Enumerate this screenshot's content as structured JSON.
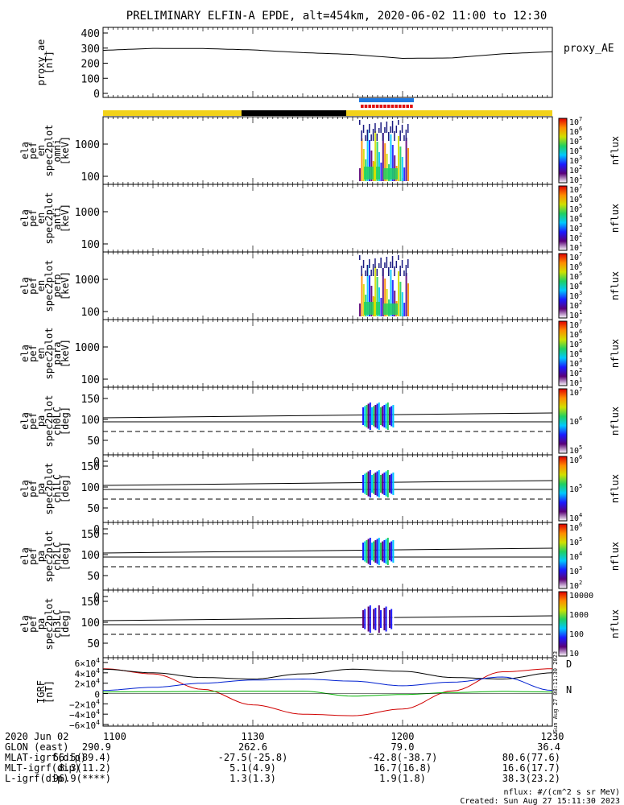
{
  "title": "PRELIMINARY ELFIN-A EPDE, alt=454km, 2020-06-02 11:00 to 12:30",
  "colors": {
    "status_yellow": "#f2d21a",
    "status_black": "#000000",
    "status_blue": "#1f78e0",
    "status_red": "#e01010"
  },
  "panels": [
    {
      "id": "proxy_ae",
      "label_lines": [
        "proxy_ae",
        "[nT]"
      ],
      "side_label": "proxy_AE",
      "yticks": [
        "400",
        "300",
        "200",
        "100",
        "0"
      ]
    },
    {
      "id": "omni",
      "label_lines": [
        "ela",
        "pef",
        "en",
        "spec2plot",
        "omni",
        "[keV]"
      ],
      "yticks": [
        "1000",
        "100"
      ],
      "cb_ticks": [
        "10^7",
        "10^6",
        "10^5",
        "10^4",
        "10^3",
        "10^2",
        "10^1"
      ],
      "cb_label": "nflux"
    },
    {
      "id": "anti",
      "label_lines": [
        "ela",
        "pef",
        "en",
        "spec2plot",
        "anti",
        "[keV]"
      ],
      "yticks": [
        "1000",
        "100"
      ],
      "cb_ticks": [
        "10^7",
        "10^6",
        "10^5",
        "10^4",
        "10^3",
        "10^2",
        "10^1"
      ],
      "cb_label": "nflux"
    },
    {
      "id": "perp",
      "label_lines": [
        "ela",
        "pef",
        "en",
        "spec2plot",
        "perp",
        "[keV]"
      ],
      "yticks": [
        "1000",
        "100"
      ],
      "cb_ticks": [
        "10^7",
        "10^6",
        "10^5",
        "10^4",
        "10^3",
        "10^2",
        "10^1"
      ],
      "cb_label": "nflux"
    },
    {
      "id": "para",
      "label_lines": [
        "ela",
        "pef",
        "en",
        "spec2plot",
        "para",
        "[keV]"
      ],
      "yticks": [
        "1000",
        "100"
      ],
      "cb_ticks": [
        "10^7",
        "10^6",
        "10^5",
        "10^4",
        "10^3",
        "10^2",
        "10^1"
      ],
      "cb_label": "nflux"
    },
    {
      "id": "ch0LC",
      "label_lines": [
        "ela",
        "pef",
        "pa",
        "spec2plot",
        "ch0LC",
        "[deg]"
      ],
      "yticks": [
        "150",
        "100",
        "50",
        "0"
      ],
      "cb_ticks": [
        "10^7",
        "10^6",
        "10^5"
      ],
      "cb_label": "nflux"
    },
    {
      "id": "ch1LC",
      "label_lines": [
        "ela",
        "pef",
        "pa",
        "spec2plot",
        "ch1LC",
        "[deg]"
      ],
      "yticks": [
        "150",
        "100",
        "50",
        "0"
      ],
      "cb_ticks": [
        "10^6",
        "10^5",
        "10^4"
      ],
      "cb_label": "nflux"
    },
    {
      "id": "ch2LC",
      "label_lines": [
        "ela",
        "pef",
        "pa",
        "spec2plot",
        "ch2LC",
        "[deg]"
      ],
      "yticks": [
        "150",
        "100",
        "50",
        "0"
      ],
      "cb_ticks": [
        "10^6",
        "10^5",
        "10^4",
        "10^3",
        "10^2"
      ],
      "cb_label": "nflux"
    },
    {
      "id": "ch3LC",
      "label_lines": [
        "ela",
        "pef",
        "pa",
        "spec2plot",
        "ch3LC",
        "[deg]"
      ],
      "yticks": [
        "150",
        "100",
        "50"
      ],
      "cb_ticks": [
        "10000",
        "1000",
        "100",
        "10"
      ],
      "cb_label": "nflux"
    },
    {
      "id": "igrf",
      "label_lines": [
        "IGRF",
        "[nT]"
      ],
      "yticks": [
        "6×10^4",
        "4×10^4",
        "2×10^4",
        "0",
        "−2×10^4",
        "−4×10^4",
        "−6×10^4"
      ],
      "legend": [
        "D",
        "N"
      ],
      "stamp": "Sun Aug 27 08:11:30 2023"
    }
  ],
  "footer": {
    "row_labels": [
      "2020 Jun 02",
      "GLON (east)",
      "MLAT-igrf(dip)",
      "MLT-igrf(dip)",
      "L-igrf(dip)"
    ],
    "columns": [
      {
        "tick": "1100",
        "values": [
          "290.9",
          "66.5(89.4)",
          "8.3(11.2)",
          "96.9(****)"
        ]
      },
      {
        "tick": "1130",
        "values": [
          "262.6",
          "-27.5(-25.8)",
          "5.1(4.9)",
          "1.3(1.3)"
        ]
      },
      {
        "tick": "1200",
        "values": [
          "79.0",
          "-42.8(-38.7)",
          "16.7(16.8)",
          "1.9(1.8)"
        ]
      },
      {
        "tick": "1230",
        "values": [
          "36.4",
          "80.6(77.6)",
          "16.6(17.7)",
          "38.3(23.2)"
        ]
      }
    ],
    "units_note": "nflux: #/(cm^2 s sr MeV)",
    "created": "Created: Sun Aug 27 15:11:30 2023"
  },
  "chart_data": [
    {
      "type": "line",
      "title": "proxy_ae",
      "xlabel": "",
      "ylabel": "proxy_ae [nT]",
      "x": [
        "11:00",
        "11:10",
        "11:20",
        "11:30",
        "11:40",
        "11:50",
        "12:00",
        "12:10",
        "12:20",
        "12:30"
      ],
      "series": [
        {
          "name": "proxy_AE",
          "values": [
            285,
            298,
            297,
            288,
            270,
            258,
            232,
            235,
            262,
            276
          ]
        }
      ],
      "ylim": [
        0,
        400
      ]
    },
    {
      "type": "heatmap",
      "title": "ela pef en spec2plot omni",
      "xlabel": "",
      "ylabel": "[keV]",
      "y_scale": "log",
      "x_range": [
        "11:53",
        "12:01"
      ],
      "zlim": [
        "10^1",
        "10^7"
      ]
    },
    {
      "type": "line",
      "title": "IGRF",
      "xlabel": "",
      "ylabel": "IGRF [nT]",
      "x": [
        "11:00",
        "11:10",
        "11:20",
        "11:30",
        "11:40",
        "11:50",
        "12:00",
        "12:10",
        "12:20",
        "12:30"
      ],
      "series": [
        {
          "name": "D",
          "values": [
            48000,
            38000,
            8000,
            -22000,
            -40000,
            -43000,
            -30000,
            5000,
            42000,
            48000
          ]
        },
        {
          "name": "",
          "values": [
            47000,
            40000,
            31000,
            28000,
            38000,
            47000,
            43000,
            31000,
            28000,
            40000
          ]
        },
        {
          "name": "",
          "values": [
            6000,
            12000,
            20000,
            26000,
            28000,
            24000,
            15000,
            22000,
            32000,
            6000
          ]
        },
        {
          "name": "N",
          "values": [
            3000,
            3500,
            4000,
            4500,
            4500,
            -5000,
            -2000,
            2000,
            4000,
            3000
          ]
        }
      ],
      "ylim": [
        -60000,
        60000
      ]
    }
  ]
}
